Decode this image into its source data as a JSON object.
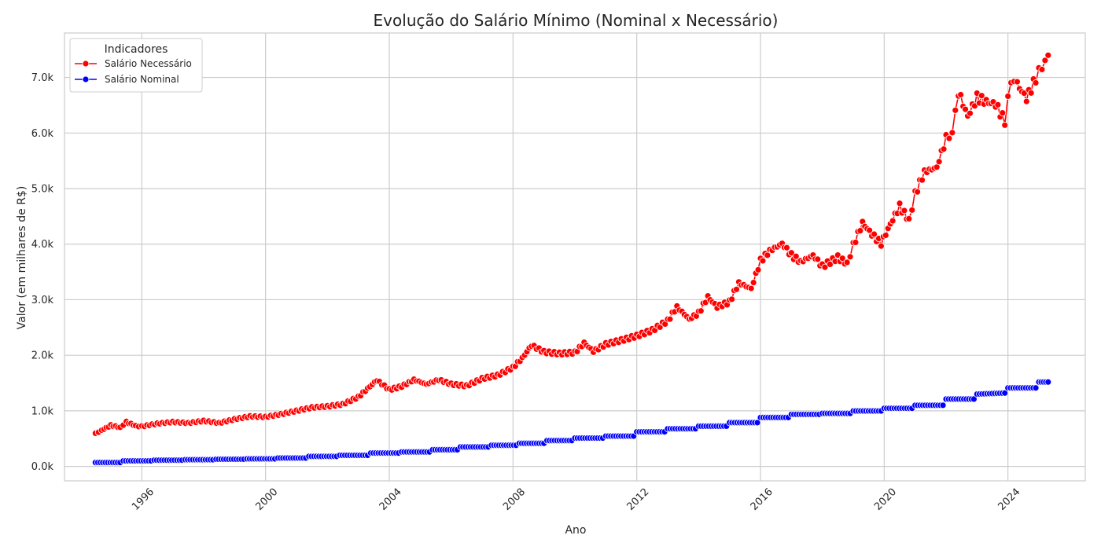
{
  "chart_data": {
    "type": "line",
    "title": "Evolução do Salário Mínimo (Nominal x Necessário)",
    "xlabel": "Ano",
    "ylabel": "Valor (em milhares de R$)",
    "x_ticks": [
      "1996",
      "2000",
      "2004",
      "2008",
      "2012",
      "2016",
      "2020",
      "2024"
    ],
    "y_ticks": [
      "0.0k",
      "1.0k",
      "2.0k",
      "3.0k",
      "4.0k",
      "5.0k",
      "6.0k",
      "7.0k"
    ],
    "xlim": [
      1993.5,
      2026.5
    ],
    "ylim": [
      -260,
      7800
    ],
    "grid": true,
    "legend": {
      "title": "Indicadores",
      "placement": "top-left",
      "entries": [
        "Salário Necessário",
        "Salário Nominal"
      ]
    },
    "colors": {
      "necessario": "#ff0000",
      "nominal": "#0000ff",
      "grid": "#cccccc",
      "axes_edge": "#cccccc"
    },
    "series": [
      {
        "name": "Salário Necessário",
        "color": "#ff0000",
        "points": [
          [
            1994.5,
            590
          ],
          [
            1994.7,
            650
          ],
          [
            1995.0,
            740
          ],
          [
            1995.3,
            700
          ],
          [
            1995.5,
            800
          ],
          [
            1995.8,
            730
          ],
          [
            1996.0,
            720
          ],
          [
            1996.5,
            770
          ],
          [
            1997.0,
            800
          ],
          [
            1997.5,
            780
          ],
          [
            1998.0,
            820
          ],
          [
            1998.5,
            780
          ],
          [
            1999.0,
            850
          ],
          [
            1999.5,
            900
          ],
          [
            2000.0,
            890
          ],
          [
            2000.5,
            940
          ],
          [
            2001.0,
            1000
          ],
          [
            2001.5,
            1060
          ],
          [
            2002.0,
            1080
          ],
          [
            2002.5,
            1120
          ],
          [
            2003.0,
            1250
          ],
          [
            2003.3,
            1400
          ],
          [
            2003.6,
            1550
          ],
          [
            2004.0,
            1380
          ],
          [
            2004.4,
            1440
          ],
          [
            2004.8,
            1560
          ],
          [
            2005.2,
            1480
          ],
          [
            2005.6,
            1560
          ],
          [
            2006.0,
            1480
          ],
          [
            2006.5,
            1450
          ],
          [
            2007.0,
            1580
          ],
          [
            2007.5,
            1640
          ],
          [
            2008.0,
            1780
          ],
          [
            2008.3,
            1950
          ],
          [
            2008.6,
            2180
          ],
          [
            2009.0,
            2060
          ],
          [
            2009.5,
            2030
          ],
          [
            2010.0,
            2050
          ],
          [
            2010.3,
            2220
          ],
          [
            2010.6,
            2070
          ],
          [
            2011.0,
            2200
          ],
          [
            2011.5,
            2270
          ],
          [
            2012.0,
            2350
          ],
          [
            2012.5,
            2450
          ],
          [
            2013.0,
            2620
          ],
          [
            2013.3,
            2870
          ],
          [
            2013.7,
            2650
          ],
          [
            2014.0,
            2760
          ],
          [
            2014.3,
            3050
          ],
          [
            2014.6,
            2870
          ],
          [
            2015.0,
            2960
          ],
          [
            2015.3,
            3300
          ],
          [
            2015.7,
            3200
          ],
          [
            2016.0,
            3700
          ],
          [
            2016.3,
            3880
          ],
          [
            2016.7,
            4010
          ],
          [
            2017.0,
            3800
          ],
          [
            2017.3,
            3680
          ],
          [
            2017.7,
            3800
          ],
          [
            2018.0,
            3600
          ],
          [
            2018.5,
            3760
          ],
          [
            2018.8,
            3650
          ],
          [
            2019.0,
            3980
          ],
          [
            2019.3,
            4380
          ],
          [
            2019.6,
            4180
          ],
          [
            2019.9,
            4010
          ],
          [
            2020.2,
            4360
          ],
          [
            2020.5,
            4680
          ],
          [
            2020.8,
            4430
          ],
          [
            2021.0,
            4900
          ],
          [
            2021.3,
            5300
          ],
          [
            2021.7,
            5380
          ],
          [
            2022.0,
            5900
          ],
          [
            2022.2,
            6000
          ],
          [
            2022.4,
            6740
          ],
          [
            2022.7,
            6300
          ],
          [
            2023.0,
            6640
          ],
          [
            2023.3,
            6560
          ],
          [
            2023.6,
            6520
          ],
          [
            2023.9,
            6210
          ],
          [
            2024.1,
            6960
          ],
          [
            2024.3,
            6880
          ],
          [
            2024.6,
            6620
          ],
          [
            2024.9,
            6980
          ],
          [
            2025.1,
            7200
          ],
          [
            2025.3,
            7400
          ]
        ]
      },
      {
        "name": "Salário Nominal",
        "color": "#0000ff",
        "points": [
          [
            1994.5,
            70
          ],
          [
            1995.3,
            70
          ],
          [
            1995.4,
            100
          ],
          [
            1996.3,
            100
          ],
          [
            1996.4,
            112
          ],
          [
            1997.3,
            112
          ],
          [
            1997.4,
            120
          ],
          [
            1998.3,
            120
          ],
          [
            1998.4,
            130
          ],
          [
            1999.3,
            130
          ],
          [
            1999.4,
            136
          ],
          [
            2000.3,
            136
          ],
          [
            2000.4,
            151
          ],
          [
            2001.3,
            151
          ],
          [
            2001.4,
            180
          ],
          [
            2002.3,
            180
          ],
          [
            2002.4,
            200
          ],
          [
            2003.3,
            200
          ],
          [
            2003.4,
            240
          ],
          [
            2004.3,
            240
          ],
          [
            2004.4,
            260
          ],
          [
            2005.3,
            260
          ],
          [
            2005.4,
            300
          ],
          [
            2006.2,
            300
          ],
          [
            2006.3,
            350
          ],
          [
            2007.2,
            350
          ],
          [
            2007.3,
            380
          ],
          [
            2008.1,
            380
          ],
          [
            2008.2,
            415
          ],
          [
            2009.0,
            415
          ],
          [
            2009.1,
            465
          ],
          [
            2009.9,
            465
          ],
          [
            2010.0,
            510
          ],
          [
            2010.9,
            510
          ],
          [
            2011.0,
            545
          ],
          [
            2011.9,
            545
          ],
          [
            2012.0,
            622
          ],
          [
            2012.9,
            622
          ],
          [
            2013.0,
            678
          ],
          [
            2013.9,
            678
          ],
          [
            2014.0,
            724
          ],
          [
            2014.9,
            724
          ],
          [
            2015.0,
            788
          ],
          [
            2015.9,
            788
          ],
          [
            2016.0,
            880
          ],
          [
            2016.9,
            880
          ],
          [
            2017.0,
            937
          ],
          [
            2017.9,
            937
          ],
          [
            2018.0,
            954
          ],
          [
            2018.9,
            954
          ],
          [
            2019.0,
            998
          ],
          [
            2019.9,
            998
          ],
          [
            2020.0,
            1045
          ],
          [
            2020.9,
            1045
          ],
          [
            2021.0,
            1100
          ],
          [
            2021.9,
            1100
          ],
          [
            2022.0,
            1212
          ],
          [
            2022.9,
            1212
          ],
          [
            2023.0,
            1302
          ],
          [
            2023.9,
            1320
          ],
          [
            2024.0,
            1412
          ],
          [
            2024.9,
            1412
          ],
          [
            2025.0,
            1518
          ],
          [
            2025.3,
            1518
          ]
        ]
      }
    ]
  }
}
